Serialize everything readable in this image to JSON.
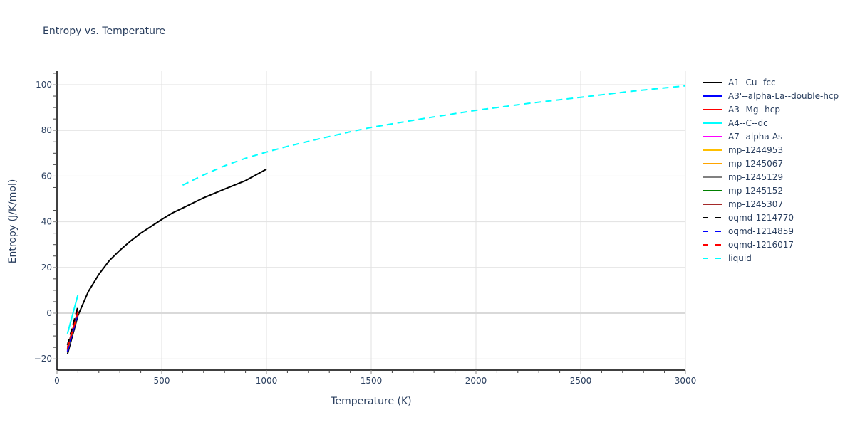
{
  "chart_data": {
    "type": "line",
    "title": "Entropy vs. Temperature",
    "xlabel": "Temperature (K)",
    "ylabel": "Entropy (J/K/mol)",
    "xlim": [
      0,
      3000
    ],
    "ylim": [
      -25,
      106
    ],
    "x_ticks": [
      0,
      500,
      1000,
      1500,
      2000,
      2500,
      3000
    ],
    "y_ticks": [
      -20,
      0,
      20,
      40,
      60,
      80,
      100
    ],
    "grid": true,
    "legend_position": "right",
    "series": [
      {
        "name": "A1--Cu--fcc",
        "color": "#000000",
        "dash": "solid",
        "x": [
          50,
          100,
          150,
          200,
          250,
          300,
          350,
          400,
          450,
          500,
          550,
          600,
          700,
          800,
          900,
          950,
          1000
        ],
        "y": [
          -18,
          -1,
          9.5,
          17,
          23,
          27.5,
          31.5,
          35,
          38,
          41,
          43.8,
          46,
          50.5,
          54.3,
          58,
          60.5,
          63
        ]
      },
      {
        "name": "A3'--alpha-La--double-hcp",
        "color": "#0000ff",
        "dash": "solid",
        "x": [
          50,
          100
        ],
        "y": [
          -17,
          1
        ]
      },
      {
        "name": "A3--Mg--hcp",
        "color": "#ff0000",
        "dash": "solid",
        "x": [
          50,
          100
        ],
        "y": [
          -16,
          0
        ]
      },
      {
        "name": "A4--C--dc",
        "color": "#00ffff",
        "dash": "solid",
        "x": [
          50,
          100
        ],
        "y": [
          -9,
          8
        ]
      },
      {
        "name": "A7--alpha-As",
        "color": "#ff00ff",
        "dash": "solid",
        "x": [
          50,
          100
        ],
        "y": [
          -16.5,
          0.5
        ]
      },
      {
        "name": "mp-1244953",
        "color": "#ffbf00",
        "dash": "solid",
        "x": [
          50,
          100
        ],
        "y": [
          -16,
          0
        ]
      },
      {
        "name": "mp-1245067",
        "color": "#ffa500",
        "dash": "solid",
        "x": [
          50,
          100
        ],
        "y": [
          -16,
          0
        ]
      },
      {
        "name": "mp-1245129",
        "color": "#808080",
        "dash": "solid",
        "x": [
          50,
          100
        ],
        "y": [
          -16,
          0
        ]
      },
      {
        "name": "mp-1245152",
        "color": "#008000",
        "dash": "solid",
        "x": [
          50,
          100
        ],
        "y": [
          -16,
          0
        ]
      },
      {
        "name": "mp-1245307",
        "color": "#a52a2a",
        "dash": "solid",
        "x": [
          50,
          100
        ],
        "y": [
          -15,
          1
        ]
      },
      {
        "name": "oqmd-1214770",
        "color": "#000000",
        "dash": "dash",
        "x": [
          50,
          100
        ],
        "y": [
          -14,
          3
        ]
      },
      {
        "name": "oqmd-1214859",
        "color": "#0000ff",
        "dash": "dash",
        "x": [
          50,
          100
        ],
        "y": [
          -17,
          0
        ]
      },
      {
        "name": "oqmd-1216017",
        "color": "#ff0000",
        "dash": "dash",
        "x": [
          50,
          100
        ],
        "y": [
          -15.5,
          0.5
        ]
      },
      {
        "name": "liquid",
        "color": "#00ffff",
        "dash": "dash",
        "x": [
          600,
          700,
          800,
          900,
          1000,
          1100,
          1200,
          1300,
          1400,
          1500,
          1750,
          2000,
          2250,
          2500,
          2750,
          3000
        ],
        "y": [
          56,
          60.5,
          64.5,
          67.8,
          70.5,
          73,
          75.2,
          77.3,
          79.4,
          81.3,
          85.2,
          88.8,
          91.8,
          94.5,
          97.2,
          99.5
        ]
      }
    ]
  },
  "legend": {
    "items": [
      {
        "label": "A1--Cu--fcc",
        "color": "#000000",
        "dash": "solid"
      },
      {
        "label": "A3'--alpha-La--double-hcp",
        "color": "#0000ff",
        "dash": "solid"
      },
      {
        "label": "A3--Mg--hcp",
        "color": "#ff0000",
        "dash": "solid"
      },
      {
        "label": "A4--C--dc",
        "color": "#00ffff",
        "dash": "solid"
      },
      {
        "label": "A7--alpha-As",
        "color": "#ff00ff",
        "dash": "solid"
      },
      {
        "label": "mp-1244953",
        "color": "#ffbf00",
        "dash": "solid"
      },
      {
        "label": "mp-1245067",
        "color": "#ffa500",
        "dash": "solid"
      },
      {
        "label": "mp-1245129",
        "color": "#808080",
        "dash": "solid"
      },
      {
        "label": "mp-1245152",
        "color": "#008000",
        "dash": "solid"
      },
      {
        "label": "mp-1245307",
        "color": "#a52a2a",
        "dash": "solid"
      },
      {
        "label": "oqmd-1214770",
        "color": "#000000",
        "dash": "dash"
      },
      {
        "label": "oqmd-1214859",
        "color": "#0000ff",
        "dash": "dash"
      },
      {
        "label": "oqmd-1216017",
        "color": "#ff0000",
        "dash": "dash"
      },
      {
        "label": "liquid",
        "color": "#00ffff",
        "dash": "dash"
      }
    ]
  }
}
